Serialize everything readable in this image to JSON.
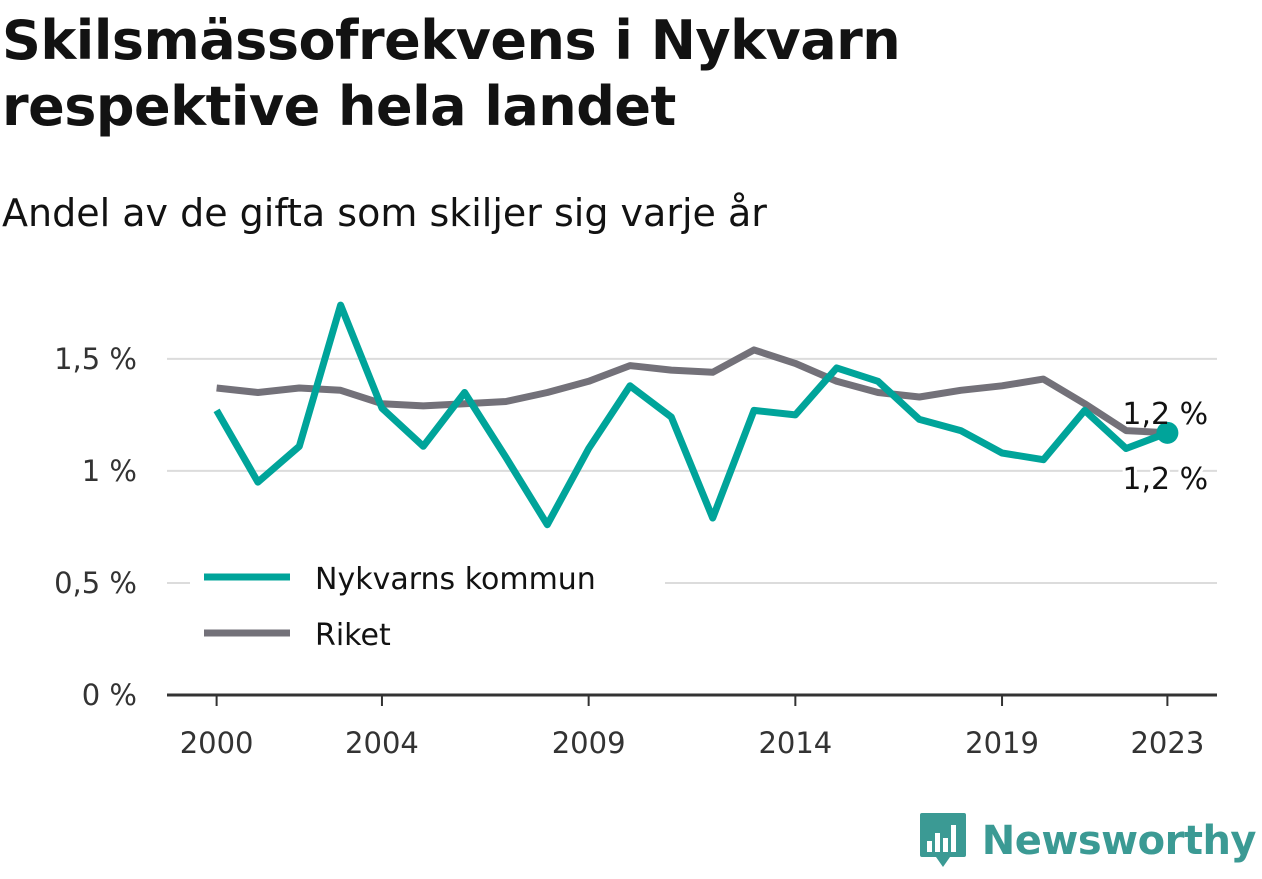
{
  "title": "Skilsmässofrekvens i Nykvarn respektive hela landet",
  "subtitle": "Andel av de gifta som skiljer sig varje år",
  "brand": {
    "name": "Newsworthy",
    "icon": "newsworthy-logo-icon"
  },
  "colors": {
    "nykvarn": "#00a49a",
    "riket": "#737179",
    "grid": "#dcdcdc",
    "axis": "#333333"
  },
  "chart_data": {
    "type": "line",
    "x": [
      2000,
      2001,
      2002,
      2003,
      2004,
      2005,
      2006,
      2007,
      2008,
      2009,
      2010,
      2011,
      2012,
      2013,
      2014,
      2015,
      2016,
      2017,
      2018,
      2019,
      2020,
      2021,
      2022,
      2023
    ],
    "xticks": [
      2000,
      2004,
      2009,
      2014,
      2019,
      2023
    ],
    "xtick_labels": [
      "2000",
      "2004",
      "2009",
      "2014",
      "2019",
      "2023"
    ],
    "yticks": [
      0,
      0.5,
      1,
      1.5
    ],
    "ytick_labels": [
      "0 %",
      "0,5 %",
      "1 %",
      "1,5 %"
    ],
    "ylim": [
      0,
      1.62
    ],
    "xlim": [
      1998.8,
      2024.2
    ],
    "grid": true,
    "legend": "bottom-left",
    "series": [
      {
        "name": "Nykvarns kommun",
        "values": [
          1.27,
          0.95,
          1.11,
          1.74,
          1.28,
          1.11,
          1.35,
          1.06,
          0.76,
          1.1,
          1.38,
          1.24,
          0.79,
          1.27,
          1.25,
          1.46,
          1.4,
          1.23,
          1.18,
          1.08,
          1.05,
          1.27,
          1.1,
          1.17
        ],
        "end_label": "1,2 %"
      },
      {
        "name": "Riket",
        "values": [
          1.37,
          1.35,
          1.37,
          1.36,
          1.3,
          1.29,
          1.3,
          1.31,
          1.35,
          1.4,
          1.47,
          1.45,
          1.44,
          1.54,
          1.48,
          1.4,
          1.35,
          1.33,
          1.36,
          1.38,
          1.41,
          1.3,
          1.18,
          1.17
        ],
        "end_label": "1,2 %"
      }
    ]
  }
}
